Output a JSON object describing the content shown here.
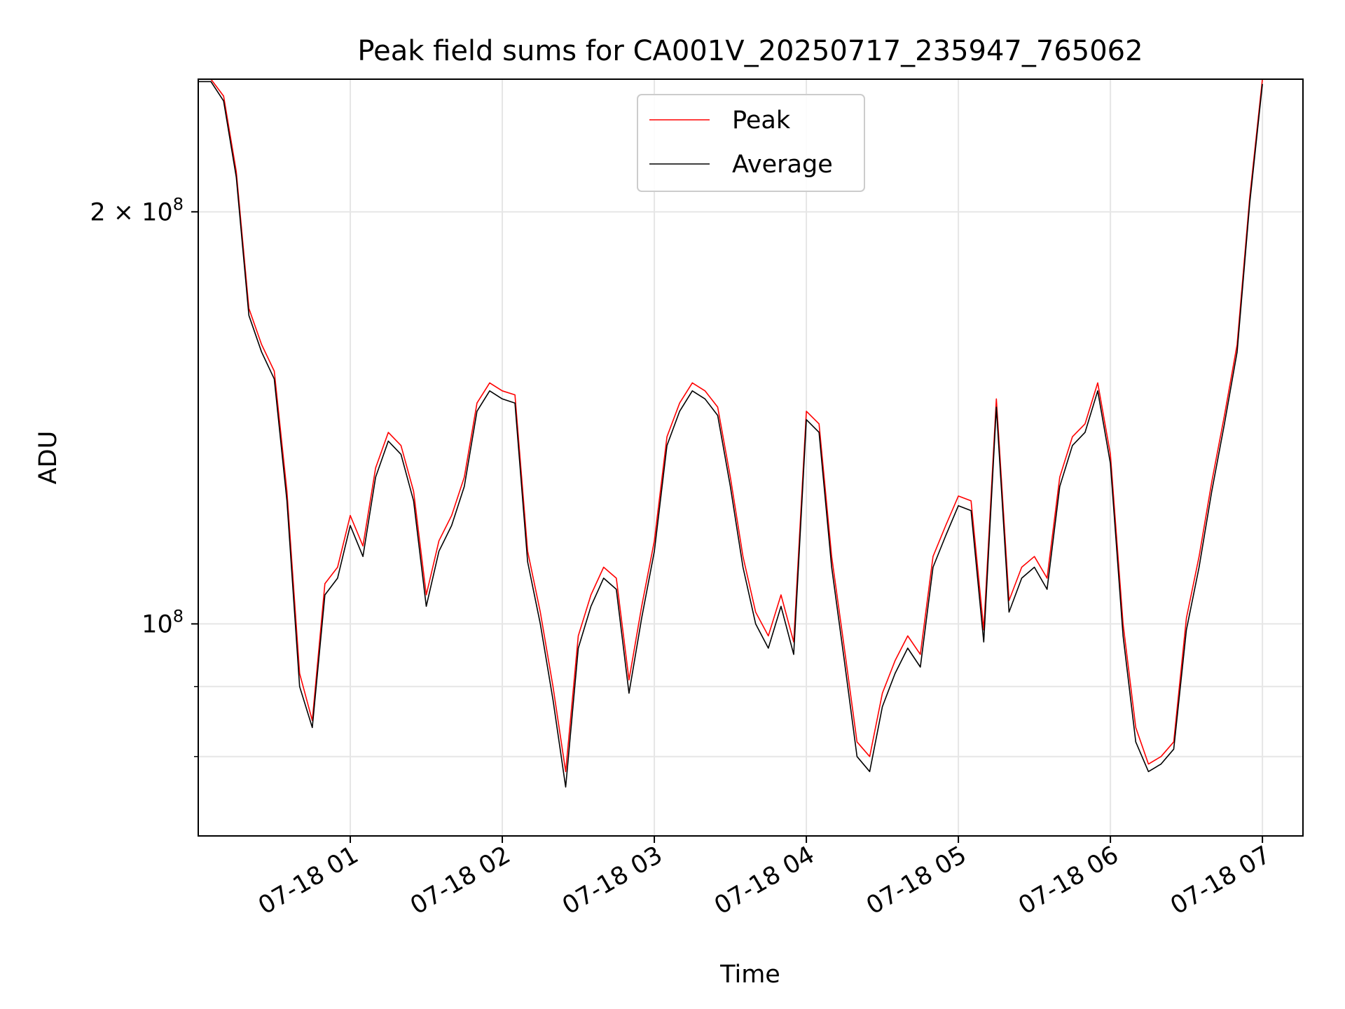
{
  "chart_data": {
    "type": "line",
    "title": "Peak field sums for CA001V_20250717_235947_765062",
    "xlabel": "Time",
    "ylabel": "ADU",
    "yscale": "log",
    "grid": true,
    "legend": {
      "placement": "top-center",
      "entries": [
        "Peak",
        "Average"
      ]
    },
    "xlim": [
      "2025-07-18T00:00",
      "2025-07-18T07:16"
    ],
    "ylim": [
      70000000,
      250000000
    ],
    "x_ticks": [
      {
        "value": "2025-07-18T01:00",
        "label": "07-18 01"
      },
      {
        "value": "2025-07-18T02:00",
        "label": "07-18 02"
      },
      {
        "value": "2025-07-18T03:00",
        "label": "07-18 03"
      },
      {
        "value": "2025-07-18T04:00",
        "label": "07-18 04"
      },
      {
        "value": "2025-07-18T05:00",
        "label": "07-18 05"
      },
      {
        "value": "2025-07-18T06:00",
        "label": "07-18 06"
      },
      {
        "value": "2025-07-18T07:00",
        "label": "07-18 07"
      }
    ],
    "y_major_ticks": [
      {
        "value": 100000000,
        "label": "10^8"
      },
      {
        "value": 200000000,
        "label": "2 × 10^8"
      }
    ],
    "y_minor_ticks": [
      80000000,
      90000000
    ],
    "series": [
      {
        "name": "Peak",
        "color": "#ff0000",
        "points": [
          [
            "2025-07-18T00:00",
            250000000
          ],
          [
            "2025-07-18T00:05",
            250000000
          ],
          [
            "2025-07-18T00:10",
            243000000
          ],
          [
            "2025-07-18T00:15",
            214000000
          ],
          [
            "2025-07-18T00:20",
            170000000
          ],
          [
            "2025-07-18T00:25",
            160000000
          ],
          [
            "2025-07-18T00:30",
            153000000
          ],
          [
            "2025-07-18T00:35",
            125000000
          ],
          [
            "2025-07-18T00:40",
            92000000
          ],
          [
            "2025-07-18T00:45",
            85000000
          ],
          [
            "2025-07-18T00:50",
            107000000
          ],
          [
            "2025-07-18T00:55",
            110000000
          ],
          [
            "2025-07-18T01:00",
            120000000
          ],
          [
            "2025-07-18T01:05",
            114000000
          ],
          [
            "2025-07-18T01:10",
            130000000
          ],
          [
            "2025-07-18T01:15",
            138000000
          ],
          [
            "2025-07-18T01:20",
            135000000
          ],
          [
            "2025-07-18T01:25",
            125000000
          ],
          [
            "2025-07-18T01:30",
            105000000
          ],
          [
            "2025-07-18T01:35",
            115000000
          ],
          [
            "2025-07-18T01:40",
            120000000
          ],
          [
            "2025-07-18T01:45",
            128000000
          ],
          [
            "2025-07-18T01:50",
            145000000
          ],
          [
            "2025-07-18T01:55",
            150000000
          ],
          [
            "2025-07-18T02:00",
            148000000
          ],
          [
            "2025-07-18T02:05",
            147000000
          ],
          [
            "2025-07-18T02:10",
            113000000
          ],
          [
            "2025-07-18T02:15",
            102000000
          ],
          [
            "2025-07-18T02:20",
            90000000
          ],
          [
            "2025-07-18T02:25",
            78000000
          ],
          [
            "2025-07-18T02:30",
            98000000
          ],
          [
            "2025-07-18T02:35",
            105000000
          ],
          [
            "2025-07-18T02:40",
            110000000
          ],
          [
            "2025-07-18T02:45",
            108000000
          ],
          [
            "2025-07-18T02:50",
            91000000
          ],
          [
            "2025-07-18T02:55",
            103000000
          ],
          [
            "2025-07-18T03:00",
            115000000
          ],
          [
            "2025-07-18T03:05",
            137000000
          ],
          [
            "2025-07-18T03:10",
            145000000
          ],
          [
            "2025-07-18T03:15",
            150000000
          ],
          [
            "2025-07-18T03:20",
            148000000
          ],
          [
            "2025-07-18T03:25",
            144000000
          ],
          [
            "2025-07-18T03:30",
            128000000
          ],
          [
            "2025-07-18T03:35",
            112000000
          ],
          [
            "2025-07-18T03:40",
            102000000
          ],
          [
            "2025-07-18T03:45",
            98000000
          ],
          [
            "2025-07-18T03:50",
            105000000
          ],
          [
            "2025-07-18T03:55",
            97000000
          ],
          [
            "2025-07-18T04:00",
            143000000
          ],
          [
            "2025-07-18T04:05",
            140000000
          ],
          [
            "2025-07-18T04:10",
            112000000
          ],
          [
            "2025-07-18T04:15",
            96000000
          ],
          [
            "2025-07-18T04:20",
            82000000
          ],
          [
            "2025-07-18T04:25",
            80000000
          ],
          [
            "2025-07-18T04:30",
            89000000
          ],
          [
            "2025-07-18T04:35",
            94000000
          ],
          [
            "2025-07-18T04:40",
            98000000
          ],
          [
            "2025-07-18T04:45",
            95000000
          ],
          [
            "2025-07-18T04:50",
            112000000
          ],
          [
            "2025-07-18T04:55",
            118000000
          ],
          [
            "2025-07-18T05:00",
            124000000
          ],
          [
            "2025-07-18T05:05",
            123000000
          ],
          [
            "2025-07-18T05:10",
            99000000
          ],
          [
            "2025-07-18T05:15",
            146000000
          ],
          [
            "2025-07-18T05:20",
            104000000
          ],
          [
            "2025-07-18T05:25",
            110000000
          ],
          [
            "2025-07-18T05:30",
            112000000
          ],
          [
            "2025-07-18T05:35",
            108000000
          ],
          [
            "2025-07-18T05:40",
            128000000
          ],
          [
            "2025-07-18T05:45",
            137000000
          ],
          [
            "2025-07-18T05:50",
            140000000
          ],
          [
            "2025-07-18T05:55",
            150000000
          ],
          [
            "2025-07-18T06:00",
            133000000
          ],
          [
            "2025-07-18T06:05",
            100000000
          ],
          [
            "2025-07-18T06:10",
            84000000
          ],
          [
            "2025-07-18T06:15",
            79000000
          ],
          [
            "2025-07-18T06:20",
            80000000
          ],
          [
            "2025-07-18T06:25",
            82000000
          ],
          [
            "2025-07-18T06:30",
            101000000
          ],
          [
            "2025-07-18T06:35",
            112000000
          ],
          [
            "2025-07-18T06:40",
            127000000
          ],
          [
            "2025-07-18T06:45",
            142000000
          ],
          [
            "2025-07-18T06:50",
            160000000
          ],
          [
            "2025-07-18T06:55",
            205000000
          ],
          [
            "2025-07-18T07:00",
            250000000
          ]
        ]
      },
      {
        "name": "Average",
        "color": "#000000",
        "points": [
          [
            "2025-07-18T00:00",
            249000000
          ],
          [
            "2025-07-18T00:05",
            249000000
          ],
          [
            "2025-07-18T00:10",
            241000000
          ],
          [
            "2025-07-18T00:15",
            212000000
          ],
          [
            "2025-07-18T00:20",
            168000000
          ],
          [
            "2025-07-18T00:25",
            158000000
          ],
          [
            "2025-07-18T00:30",
            151000000
          ],
          [
            "2025-07-18T00:35",
            123000000
          ],
          [
            "2025-07-18T00:40",
            90000000
          ],
          [
            "2025-07-18T00:45",
            84000000
          ],
          [
            "2025-07-18T00:50",
            105000000
          ],
          [
            "2025-07-18T00:55",
            108000000
          ],
          [
            "2025-07-18T01:00",
            118000000
          ],
          [
            "2025-07-18T01:05",
            112000000
          ],
          [
            "2025-07-18T01:10",
            128000000
          ],
          [
            "2025-07-18T01:15",
            136000000
          ],
          [
            "2025-07-18T01:20",
            133000000
          ],
          [
            "2025-07-18T01:25",
            123000000
          ],
          [
            "2025-07-18T01:30",
            103000000
          ],
          [
            "2025-07-18T01:35",
            113000000
          ],
          [
            "2025-07-18T01:40",
            118000000
          ],
          [
            "2025-07-18T01:45",
            126000000
          ],
          [
            "2025-07-18T01:50",
            143000000
          ],
          [
            "2025-07-18T01:55",
            148000000
          ],
          [
            "2025-07-18T02:00",
            146000000
          ],
          [
            "2025-07-18T02:05",
            145000000
          ],
          [
            "2025-07-18T02:10",
            111000000
          ],
          [
            "2025-07-18T02:15",
            100000000
          ],
          [
            "2025-07-18T02:20",
            88000000
          ],
          [
            "2025-07-18T02:25",
            76000000
          ],
          [
            "2025-07-18T02:30",
            96000000
          ],
          [
            "2025-07-18T02:35",
            103000000
          ],
          [
            "2025-07-18T02:40",
            108000000
          ],
          [
            "2025-07-18T02:45",
            106000000
          ],
          [
            "2025-07-18T02:50",
            89000000
          ],
          [
            "2025-07-18T02:55",
            101000000
          ],
          [
            "2025-07-18T03:00",
            113000000
          ],
          [
            "2025-07-18T03:05",
            135000000
          ],
          [
            "2025-07-18T03:10",
            143000000
          ],
          [
            "2025-07-18T03:15",
            148000000
          ],
          [
            "2025-07-18T03:20",
            146000000
          ],
          [
            "2025-07-18T03:25",
            142000000
          ],
          [
            "2025-07-18T03:30",
            126000000
          ],
          [
            "2025-07-18T03:35",
            110000000
          ],
          [
            "2025-07-18T03:40",
            100000000
          ],
          [
            "2025-07-18T03:45",
            96000000
          ],
          [
            "2025-07-18T03:50",
            103000000
          ],
          [
            "2025-07-18T03:55",
            95000000
          ],
          [
            "2025-07-18T04:00",
            141000000
          ],
          [
            "2025-07-18T04:05",
            138000000
          ],
          [
            "2025-07-18T04:10",
            110000000
          ],
          [
            "2025-07-18T04:15",
            94000000
          ],
          [
            "2025-07-18T04:20",
            80000000
          ],
          [
            "2025-07-18T04:25",
            78000000
          ],
          [
            "2025-07-18T04:30",
            87000000
          ],
          [
            "2025-07-18T04:35",
            92000000
          ],
          [
            "2025-07-18T04:40",
            96000000
          ],
          [
            "2025-07-18T04:45",
            93000000
          ],
          [
            "2025-07-18T04:50",
            110000000
          ],
          [
            "2025-07-18T04:55",
            116000000
          ],
          [
            "2025-07-18T05:00",
            122000000
          ],
          [
            "2025-07-18T05:05",
            121000000
          ],
          [
            "2025-07-18T05:10",
            97000000
          ],
          [
            "2025-07-18T05:15",
            144000000
          ],
          [
            "2025-07-18T05:20",
            102000000
          ],
          [
            "2025-07-18T05:25",
            108000000
          ],
          [
            "2025-07-18T05:30",
            110000000
          ],
          [
            "2025-07-18T05:35",
            106000000
          ],
          [
            "2025-07-18T05:40",
            126000000
          ],
          [
            "2025-07-18T05:45",
            135000000
          ],
          [
            "2025-07-18T05:50",
            138000000
          ],
          [
            "2025-07-18T05:55",
            148000000
          ],
          [
            "2025-07-18T06:00",
            131000000
          ],
          [
            "2025-07-18T06:05",
            98000000
          ],
          [
            "2025-07-18T06:10",
            82000000
          ],
          [
            "2025-07-18T06:15",
            78000000
          ],
          [
            "2025-07-18T06:20",
            79000000
          ],
          [
            "2025-07-18T06:25",
            81000000
          ],
          [
            "2025-07-18T06:30",
            99000000
          ],
          [
            "2025-07-18T06:35",
            110000000
          ],
          [
            "2025-07-18T06:40",
            125000000
          ],
          [
            "2025-07-18T06:45",
            140000000
          ],
          [
            "2025-07-18T06:50",
            158000000
          ],
          [
            "2025-07-18T06:55",
            203000000
          ],
          [
            "2025-07-18T07:00",
            248000000
          ]
        ]
      }
    ]
  }
}
